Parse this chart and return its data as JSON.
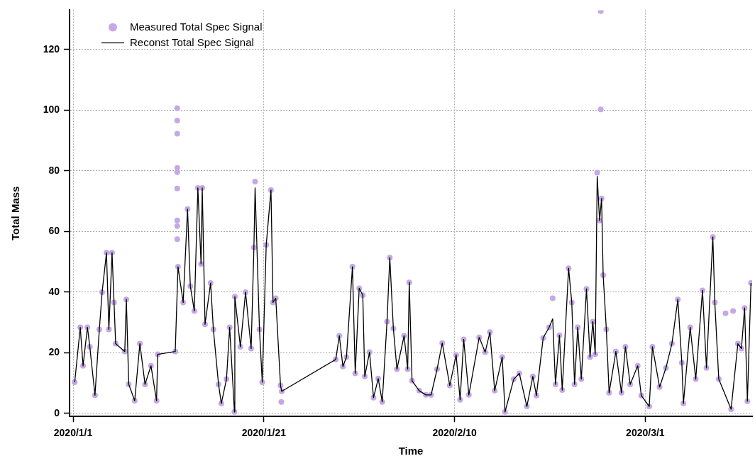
{
  "chart_data": {
    "type": "line",
    "xlabel": "Time",
    "ylabel": "Total Mass",
    "xlim": [
      "2019-12-31T15:00",
      "2020-03-12T05:00"
    ],
    "xticks": [
      {
        "value": "2020-01-01",
        "label": "2020/1/1"
      },
      {
        "value": "2020-01-21",
        "label": "2020/1/21"
      },
      {
        "value": "2020-02-10",
        "label": "2020/2/10"
      },
      {
        "value": "2020-03-01",
        "label": "2020/3/1"
      }
    ],
    "ylim": [
      -1,
      133
    ],
    "yticks": [
      0,
      20,
      40,
      60,
      80,
      100,
      120
    ],
    "grid": true,
    "legend": "top left",
    "series": [
      {
        "name": "Measured Total Spec Signal",
        "type": "scatter",
        "marker": "circle",
        "color": "#c5a9e6",
        "x": [
          "2020-01-01T04:00",
          "2020-01-01T18:00",
          "2020-01-02T01:00",
          "2020-01-02T12:00",
          "2020-01-02T18:00",
          "2020-01-03T07:00",
          "2020-01-03T18:00",
          "2020-01-04T01:00",
          "2020-01-04T12:00",
          "2020-01-04T18:00",
          "2020-01-05T02:00",
          "2020-01-05T07:00",
          "2020-01-05T11:00",
          "2020-01-06T10:00",
          "2020-01-06T14:00",
          "2020-01-06T20:00",
          "2020-01-07T11:00",
          "2020-01-08T00:00",
          "2020-01-08T13:00",
          "2020-01-09T04:00",
          "2020-01-09T18:00",
          "2020-01-09T21:00",
          "2020-01-11T17:00",
          "2020-01-11T22:00",
          "2020-01-11T22:00",
          "2020-01-11T22:00",
          "2020-01-11T22:00",
          "2020-01-11T22:00",
          "2020-01-11T22:00",
          "2020-01-11T22:00",
          "2020-01-11T22:00",
          "2020-01-11T22:00",
          "2020-01-12T00:00",
          "2020-01-12T13:00",
          "2020-01-13T00:00",
          "2020-01-13T07:00",
          "2020-01-13T17:00",
          "2020-01-14T02:00",
          "2020-01-14T10:00",
          "2020-01-14T13:00",
          "2020-01-14T20:00",
          "2020-01-15T10:00",
          "2020-01-15T17:00",
          "2020-01-16T06:00",
          "2020-01-16T13:00",
          "2020-01-17T02:00",
          "2020-01-17T10:00",
          "2020-01-17T22:00",
          "2020-01-17T23:00",
          "2020-01-18T13:00",
          "2020-01-19T02:00",
          "2020-01-19T16:00",
          "2020-01-19T23:00",
          "2020-01-20T02:00",
          "2020-01-20T13:00",
          "2020-01-20T20:00",
          "2020-01-21T06:00",
          "2020-01-21T18:00",
          "2020-01-21T23:00",
          "2020-01-22T06:00",
          "2020-01-22T18:00",
          "2020-01-22T20:00",
          "2020-01-22T21:00",
          "2020-01-28T13:00",
          "2020-01-28T22:00",
          "2020-01-29T07:00",
          "2020-01-29T16:00",
          "2020-01-30T07:00",
          "2020-01-30T14:00",
          "2020-01-31T00:00",
          "2020-01-31T09:00",
          "2020-01-31T14:00",
          "2020-02-01T02:00",
          "2020-02-01T12:00",
          "2020-02-02T00:00",
          "2020-02-02T10:00",
          "2020-02-02T22:00",
          "2020-02-03T05:00",
          "2020-02-03T14:00",
          "2020-02-03T23:00",
          "2020-02-04T17:00",
          "2020-02-05T02:00",
          "2020-02-05T06:00",
          "2020-02-05T13:00",
          "2020-02-06T07:00",
          "2020-02-07T00:00",
          "2020-02-07T13:00",
          "2020-02-08T04:00",
          "2020-02-08T17:00",
          "2020-02-09T12:00",
          "2020-02-10T04:00",
          "2020-02-10T14:00",
          "2020-02-10T23:00",
          "2020-02-11T12:00",
          "2020-02-12T14:00",
          "2020-02-13T05:00",
          "2020-02-13T17:00",
          "2020-02-14T05:00",
          "2020-02-15T00:00",
          "2020-02-15T07:00",
          "2020-02-16T05:00",
          "2020-02-16T19:00",
          "2020-02-17T14:00",
          "2020-02-18T05:00",
          "2020-02-18T14:00",
          "2020-02-19T07:00",
          "2020-02-19T22:00",
          "2020-02-20T07:00",
          "2020-02-20T14:00",
          "2020-02-21T00:00",
          "2020-02-21T07:00",
          "2020-02-21T23:00",
          "2020-02-22T07:00",
          "2020-02-22T14:00",
          "2020-02-22T22:00",
          "2020-02-23T07:00",
          "2020-02-23T20:00",
          "2020-02-24T05:00",
          "2020-02-24T12:00",
          "2020-02-24T18:00",
          "2020-02-24T23:00",
          "2020-02-25T05:00",
          "2020-02-25T08:00",
          "2020-02-25T08:00",
          "2020-02-25T10:00",
          "2020-02-25T14:00",
          "2020-02-25T22:00",
          "2020-02-26T05:00",
          "2020-02-26T22:00",
          "2020-02-27T12:00",
          "2020-02-27T22:00",
          "2020-02-28T10:00",
          "2020-02-29T05:00",
          "2020-02-29T14:00",
          "2020-03-01T10:00",
          "2020-03-01T18:00",
          "2020-03-02T12:00",
          "2020-03-03T04:00",
          "2020-03-03T19:00",
          "2020-03-04T10:00",
          "2020-03-04T20:00",
          "2020-03-05T00:00",
          "2020-03-05T17:00",
          "2020-03-06T07:00",
          "2020-03-07T00:00",
          "2020-03-07T10:00",
          "2020-03-08T02:00",
          "2020-03-08T07:00",
          "2020-03-08T17:00",
          "2020-03-09T10:00",
          "2020-03-10T00:00",
          "2020-03-10T05:00",
          "2020-03-10T17:00",
          "2020-03-11T02:00",
          "2020-03-11T10:00",
          "2020-03-11T17:00",
          "2020-03-12T02:00"
        ],
        "values": [
          10.3,
          28.4,
          15.7,
          28.4,
          22,
          6,
          27.7,
          40,
          53,
          27.7,
          53,
          36.6,
          23,
          20.4,
          37.6,
          9.6,
          4.2,
          23,
          9.6,
          15.7,
          4.2,
          19.5,
          20.4,
          100.7,
          96.6,
          92.3,
          81,
          79.6,
          74.2,
          63.7,
          61.8,
          57.5,
          48.4,
          36.6,
          67.4,
          42,
          33.8,
          74.4,
          49.3,
          74.4,
          29.4,
          43,
          27.7,
          9.6,
          3.3,
          11.3,
          28.4,
          0.5,
          38.5,
          22,
          40,
          21.4,
          54.7,
          76.5,
          27.7,
          10.3,
          55.6,
          73.7,
          36.6,
          38,
          9.2,
          3.8,
          7.3,
          17.8,
          25.6,
          15.5,
          18.6,
          48.4,
          13.2,
          41.3,
          39,
          12.2,
          20.2,
          5.2,
          11.5,
          3.8,
          30.3,
          51.4,
          28,
          14.6,
          25.6,
          14.6,
          43.2,
          10.8,
          7.5,
          6.1,
          6.1,
          14.6,
          23.2,
          9.2,
          19.3,
          4.5,
          24.4,
          6.1,
          25.1,
          20.2,
          26.8,
          7.5,
          18.6,
          0.5,
          11.3,
          13.2,
          2.3,
          12.2,
          5.9,
          24.9,
          28.4,
          38,
          9.6,
          25.8,
          7.7,
          47.9,
          36.6,
          9.6,
          28.4,
          11.3,
          41.1,
          18.6,
          30.3,
          19.5,
          79.4,
          63.6,
          132.7,
          100.3,
          70.9,
          45.6,
          27.7,
          6.8,
          20.4,
          6.8,
          22,
          9.6,
          15.7,
          5.9,
          2.3,
          22,
          8.7,
          15,
          23,
          37.6,
          16.7,
          3.3,
          28.4,
          11.3,
          40.6,
          15,
          58.2,
          36.6,
          11.3,
          33,
          1.4,
          33.8,
          23,
          21.4,
          34.8,
          4,
          43
        ]
      },
      {
        "name": "Reconst Total Spec Signal",
        "marker": "none",
        "line_style": "solid",
        "color": "#000000",
        "x": [
          "2020-01-01T04:00",
          "2020-01-01T18:00",
          "2020-01-02T01:00",
          "2020-01-02T12:00",
          "2020-01-02T18:00",
          "2020-01-03T07:00",
          "2020-01-03T18:00",
          "2020-01-04T01:00",
          "2020-01-04T12:00",
          "2020-01-04T18:00",
          "2020-01-05T02:00",
          "2020-01-05T07:00",
          "2020-01-05T11:00",
          "2020-01-06T10:00",
          "2020-01-06T14:00",
          "2020-01-06T20:00",
          "2020-01-07T11:00",
          "2020-01-08T00:00",
          "2020-01-08T13:00",
          "2020-01-09T04:00",
          "2020-01-09T18:00",
          "2020-01-09T21:00",
          "2020-01-11T17:00",
          "2020-01-12T00:00",
          "2020-01-12T13:00",
          "2020-01-13T00:00",
          "2020-01-13T07:00",
          "2020-01-13T17:00",
          "2020-01-14T02:00",
          "2020-01-14T10:00",
          "2020-01-14T13:00",
          "2020-01-14T20:00",
          "2020-01-15T10:00",
          "2020-01-15T17:00",
          "2020-01-16T06:00",
          "2020-01-16T13:00",
          "2020-01-17T02:00",
          "2020-01-17T10:00",
          "2020-01-17T22:00",
          "2020-01-17T23:00",
          "2020-01-18T13:00",
          "2020-01-19T02:00",
          "2020-01-19T16:00",
          "2020-01-19T23:00",
          "2020-01-20T02:00",
          "2020-01-20T13:00",
          "2020-01-20T20:00",
          "2020-01-21T06:00",
          "2020-01-21T18:00",
          "2020-01-21T23:00",
          "2020-01-22T06:00",
          "2020-01-22T18:00",
          "2020-01-22T21:00",
          "2020-01-28T13:00",
          "2020-01-28T22:00",
          "2020-01-29T07:00",
          "2020-01-29T16:00",
          "2020-01-30T07:00",
          "2020-01-30T14:00",
          "2020-01-31T00:00",
          "2020-01-31T09:00",
          "2020-01-31T14:00",
          "2020-02-01T02:00",
          "2020-02-01T12:00",
          "2020-02-02T00:00",
          "2020-02-02T10:00",
          "2020-02-02T22:00",
          "2020-02-03T05:00",
          "2020-02-03T14:00",
          "2020-02-03T23:00",
          "2020-02-04T17:00",
          "2020-02-05T02:00",
          "2020-02-05T06:00",
          "2020-02-05T13:00",
          "2020-02-06T07:00",
          "2020-02-07T00:00",
          "2020-02-07T13:00",
          "2020-02-08T04:00",
          "2020-02-08T17:00",
          "2020-02-09T12:00",
          "2020-02-10T04:00",
          "2020-02-10T14:00",
          "2020-02-10T23:00",
          "2020-02-11T12:00",
          "2020-02-12T14:00",
          "2020-02-13T05:00",
          "2020-02-13T17:00",
          "2020-02-14T05:00",
          "2020-02-15T00:00",
          "2020-02-15T07:00",
          "2020-02-16T05:00",
          "2020-02-16T19:00",
          "2020-02-17T14:00",
          "2020-02-18T05:00",
          "2020-02-18T14:00",
          "2020-02-19T07:00",
          "2020-02-19T22:00",
          "2020-02-20T07:00",
          "2020-02-20T14:00",
          "2020-02-21T00:00",
          "2020-02-21T07:00",
          "2020-02-21T23:00",
          "2020-02-22T07:00",
          "2020-02-22T14:00",
          "2020-02-22T22:00",
          "2020-02-23T07:00",
          "2020-02-23T20:00",
          "2020-02-24T05:00",
          "2020-02-24T12:00",
          "2020-02-24T18:00",
          "2020-02-24T23:00",
          "2020-02-25T05:00",
          "2020-02-25T10:00",
          "2020-02-25T14:00",
          "2020-02-25T22:00",
          "2020-02-26T05:00",
          "2020-02-26T22:00",
          "2020-02-27T12:00",
          "2020-02-27T22:00",
          "2020-02-28T10:00",
          "2020-02-29T05:00",
          "2020-02-29T14:00",
          "2020-03-01T10:00",
          "2020-03-01T18:00",
          "2020-03-02T12:00",
          "2020-03-03T04:00",
          "2020-03-03T19:00",
          "2020-03-04T10:00",
          "2020-03-04T20:00",
          "2020-03-05T00:00",
          "2020-03-05T17:00",
          "2020-03-06T07:00",
          "2020-03-07T00:00",
          "2020-03-07T10:00",
          "2020-03-08T02:00",
          "2020-03-08T07:00",
          "2020-03-08T17:00",
          "2020-03-10T00:00",
          "2020-03-10T17:00",
          "2020-03-11T02:00",
          "2020-03-11T10:00",
          "2020-03-11T17:00",
          "2020-03-12T02:00"
        ],
        "values": [
          10.3,
          28.4,
          15.7,
          28.4,
          22,
          6,
          27.7,
          40,
          53,
          27.7,
          53,
          36.6,
          23,
          20.4,
          37.6,
          9.6,
          4.2,
          23,
          9.6,
          15.7,
          4.2,
          19.5,
          20.4,
          48.4,
          36.6,
          67.4,
          42,
          33.8,
          74.4,
          49.3,
          74.4,
          29.4,
          43,
          27.7,
          9.6,
          3.3,
          11.3,
          28.4,
          0.5,
          38.5,
          22,
          40,
          21.4,
          54.7,
          74.4,
          27.7,
          10.3,
          55.6,
          73.7,
          36.6,
          38,
          9.2,
          7.3,
          17.8,
          25.6,
          15.5,
          18.6,
          48.4,
          13.2,
          41.3,
          39,
          12.2,
          20.2,
          5.2,
          11.5,
          3.8,
          30.3,
          51.4,
          28,
          14.6,
          25.6,
          14.6,
          43.2,
          10.8,
          7.5,
          6.1,
          6.1,
          14.6,
          23.2,
          9.2,
          19.3,
          4.5,
          24.4,
          6.1,
          25.1,
          20.2,
          26.8,
          7.5,
          18.6,
          0.5,
          11.3,
          13.2,
          2.3,
          12.2,
          5.9,
          24.9,
          28.4,
          31.2,
          9.6,
          25.8,
          7.7,
          47.9,
          36.6,
          9.6,
          28.4,
          11.3,
          41.1,
          18.6,
          30.3,
          19.5,
          78.2,
          63.6,
          70.9,
          45.6,
          27.7,
          6.8,
          20.4,
          6.8,
          22,
          9.6,
          15.7,
          5.9,
          2.3,
          22,
          8.7,
          15,
          23,
          37.6,
          16.7,
          3.3,
          28.4,
          11.3,
          40.6,
          15,
          58.2,
          36.6,
          11.3,
          1.4,
          23,
          21.4,
          34.8,
          4,
          43
        ]
      }
    ]
  }
}
